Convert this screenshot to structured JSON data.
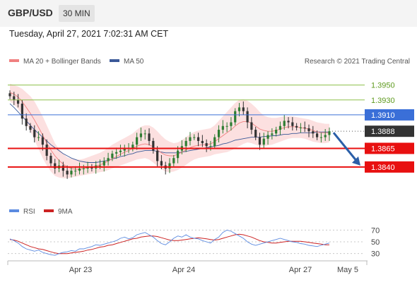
{
  "header": {
    "symbol": "GBP/USD",
    "timeframe": "30 MIN",
    "datetime": "Tuesday, April 27, 2021 7:02:31 AM CET"
  },
  "legend": {
    "ma20_bb": "MA 20 + Bollinger Bands",
    "ma50": "MA 50",
    "credit": "Research © 2021 Trading Central",
    "rsi": "RSI",
    "ma9": "9MA"
  },
  "colors": {
    "ma20": "#f08080",
    "ma50": "#3b5998",
    "bands": "#fbd5d5",
    "resistance": "#8dc04a",
    "pivot": "#3a6fd8",
    "support": "#e81010",
    "current": "#333333",
    "candle_up": "#2e7d32",
    "candle_down": "#333333",
    "arrow": "#2b5fa8",
    "rsi": "#5b8ae0",
    "rsi_ma": "#cc2222"
  },
  "chart_data": [
    {
      "type": "candlestick",
      "y_range": [
        1.382,
        1.3962
      ],
      "levels": [
        {
          "value": 1.395,
          "label": "1.3950",
          "kind": "resistance"
        },
        {
          "value": 1.393,
          "label": "1.3930",
          "kind": "resistance"
        },
        {
          "value": 1.391,
          "label": "1.3910",
          "kind": "pivot"
        },
        {
          "value": 1.3888,
          "label": "1.3888",
          "kind": "current"
        },
        {
          "value": 1.3865,
          "label": "1.3865",
          "kind": "support"
        },
        {
          "value": 1.384,
          "label": "1.3840",
          "kind": "support"
        }
      ],
      "x_ticks": [
        "Apr 23",
        "Apr 24",
        "Apr 27",
        "May 5"
      ],
      "close": [
        1.3935,
        1.393,
        1.3925,
        1.3905,
        1.3895,
        1.389,
        1.388,
        1.388,
        1.387,
        1.3855,
        1.3845,
        1.3838,
        1.3842,
        1.3835,
        1.383,
        1.3835,
        1.3835,
        1.3838,
        1.3838,
        1.384,
        1.3838,
        1.3842,
        1.3842,
        1.3848,
        1.3852,
        1.3858,
        1.386,
        1.3862,
        1.3865,
        1.3865,
        1.387,
        1.388,
        1.3885,
        1.3885,
        1.3875,
        1.3862,
        1.3848,
        1.3842,
        1.3838,
        1.3845,
        1.3852,
        1.3862,
        1.3868,
        1.3875,
        1.388,
        1.388,
        1.3875,
        1.3872,
        1.3868,
        1.3868,
        1.388,
        1.389,
        1.3895,
        1.3895,
        1.39,
        1.3915,
        1.392,
        1.3915,
        1.39,
        1.389,
        1.388,
        1.387,
        1.3878,
        1.3883,
        1.3885,
        1.389,
        1.3895,
        1.3902,
        1.39,
        1.3895,
        1.3893,
        1.3893,
        1.3892,
        1.3888,
        1.3885,
        1.388,
        1.388,
        1.3883,
        1.3888
      ],
      "ma20": [
        1.394,
        1.3938,
        1.3934,
        1.3928,
        1.392,
        1.3912,
        1.3903,
        1.3893,
        1.3883,
        1.3872,
        1.3863,
        1.3855,
        1.3849,
        1.3844,
        1.384,
        1.3838,
        1.3837,
        1.3837,
        1.3838,
        1.3839,
        1.384,
        1.3841,
        1.3843,
        1.3845,
        1.3848,
        1.3851,
        1.3854,
        1.3857,
        1.386,
        1.3862,
        1.3865,
        1.3868,
        1.387,
        1.3871,
        1.387,
        1.3867,
        1.3863,
        1.3859,
        1.3856,
        1.3855,
        1.3855,
        1.3857,
        1.386,
        1.3863,
        1.3866,
        1.3868,
        1.3869,
        1.387,
        1.387,
        1.3871,
        1.3874,
        1.3878,
        1.3882,
        1.3886,
        1.389,
        1.3895,
        1.3899,
        1.3901,
        1.3901,
        1.3899,
        1.3895,
        1.3891,
        1.3889,
        1.3888,
        1.3888,
        1.3889,
        1.3891,
        1.3893,
        1.3894,
        1.3894,
        1.3894,
        1.3893,
        1.3892,
        1.3891,
        1.3889,
        1.3887,
        1.3886,
        1.3886,
        1.3886
      ],
      "bb_upper": [
        1.3952,
        1.395,
        1.3948,
        1.3945,
        1.394,
        1.3935,
        1.3928,
        1.3918,
        1.3908,
        1.3896,
        1.3884,
        1.3872,
        1.3864,
        1.3858,
        1.3853,
        1.3851,
        1.385,
        1.385,
        1.3851,
        1.3853,
        1.3855,
        1.3857,
        1.3859,
        1.3862,
        1.3866,
        1.387,
        1.3873,
        1.3876,
        1.3879,
        1.3882,
        1.3885,
        1.389,
        1.3894,
        1.3896,
        1.3896,
        1.3893,
        1.3888,
        1.3882,
        1.3877,
        1.3874,
        1.3872,
        1.3873,
        1.3876,
        1.388,
        1.3884,
        1.3887,
        1.3889,
        1.389,
        1.3891,
        1.3892,
        1.3896,
        1.3902,
        1.3908,
        1.3914,
        1.392,
        1.3926,
        1.393,
        1.3931,
        1.3929,
        1.3925,
        1.392,
        1.3914,
        1.3909,
        1.3907,
        1.3906,
        1.3906,
        1.3907,
        1.3908,
        1.3908,
        1.3908,
        1.3907,
        1.3906,
        1.3905,
        1.3904,
        1.3902,
        1.39,
        1.3899,
        1.3898,
        1.3898
      ],
      "bb_lower": [
        1.3928,
        1.3924,
        1.3918,
        1.391,
        1.39,
        1.3888,
        1.3876,
        1.3864,
        1.3852,
        1.3842,
        1.3834,
        1.3828,
        1.3826,
        1.3825,
        1.3825,
        1.3826,
        1.3827,
        1.3828,
        1.3829,
        1.383,
        1.3831,
        1.3832,
        1.3833,
        1.3834,
        1.3836,
        1.3838,
        1.384,
        1.3842,
        1.3844,
        1.3846,
        1.3848,
        1.385,
        1.3851,
        1.3852,
        1.385,
        1.3846,
        1.3841,
        1.3837,
        1.3834,
        1.3833,
        1.3834,
        1.3836,
        1.3839,
        1.3843,
        1.3847,
        1.385,
        1.3852,
        1.3853,
        1.3854,
        1.3855,
        1.3857,
        1.3858,
        1.3859,
        1.386,
        1.3862,
        1.3865,
        1.3868,
        1.3871,
        1.3873,
        1.3872,
        1.387,
        1.3868,
        1.3868,
        1.3869,
        1.387,
        1.3872,
        1.3874,
        1.3876,
        1.3878,
        1.3879,
        1.3879,
        1.3879,
        1.3878,
        1.3876,
        1.3874,
        1.3873,
        1.3872,
        1.3872,
        1.3873
      ],
      "ma50": [
        1.3925,
        1.392,
        1.3914,
        1.3908,
        1.3902,
        1.3896,
        1.389,
        1.3885,
        1.388,
        1.3875,
        1.387,
        1.3866,
        1.3862,
        1.3858,
        1.3855,
        1.3852,
        1.385,
        1.3848,
        1.3847,
        1.3846,
        1.3846,
        1.3846,
        1.3847,
        1.3848,
        1.3849,
        1.3851,
        1.3852,
        1.3854,
        1.3855,
        1.3857,
        1.3858,
        1.386,
        1.3861,
        1.3862,
        1.3862,
        1.3862,
        1.3861,
        1.386,
        1.3859,
        1.3859,
        1.3859,
        1.3859,
        1.386,
        1.3861,
        1.3862,
        1.3863,
        1.3864,
        1.3865,
        1.3866,
        1.3867,
        1.3868,
        1.3869,
        1.3871,
        1.3872,
        1.3874,
        1.3876,
        1.3877,
        1.3878,
        1.3879,
        1.388,
        1.388,
        1.388,
        1.3881,
        1.3881,
        1.3882,
        1.3882,
        1.3883,
        1.3884,
        1.3884,
        1.3885,
        1.3885,
        1.3886,
        1.3886,
        1.3886,
        1.3886,
        1.3887,
        1.3887,
        1.3887,
        1.3887
      ],
      "forecast": {
        "from": 1.3888,
        "to": 1.384
      }
    },
    {
      "type": "line",
      "name": "RSI",
      "y_ticks": [
        "70",
        "50",
        "30"
      ],
      "y_range": [
        20,
        80
      ],
      "rsi": [
        55,
        52,
        48,
        42,
        38,
        36,
        34,
        36,
        32,
        30,
        28,
        27,
        30,
        32,
        33,
        35,
        34,
        38,
        38,
        40,
        42,
        45,
        44,
        46,
        48,
        50,
        52,
        56,
        58,
        55,
        57,
        62,
        64,
        66,
        62,
        58,
        52,
        47,
        45,
        50,
        56,
        60,
        58,
        62,
        58,
        56,
        55,
        52,
        50,
        48,
        54,
        58,
        66,
        70,
        68,
        64,
        60,
        56,
        50,
        46,
        44,
        46,
        48,
        50,
        52,
        54,
        56,
        54,
        52,
        50,
        49,
        47,
        46,
        44,
        43,
        42,
        44,
        46,
        48
      ],
      "ma9": [
        54,
        53,
        51,
        48,
        45,
        42,
        40,
        38,
        37,
        35,
        33,
        31,
        30,
        30,
        30,
        31,
        32,
        33,
        34,
        36,
        37,
        39,
        41,
        42,
        44,
        45,
        47,
        49,
        51,
        53,
        55,
        56,
        58,
        59,
        60,
        60,
        59,
        57,
        55,
        53,
        52,
        52,
        53,
        54,
        55,
        56,
        57,
        56,
        55,
        54,
        53,
        54,
        56,
        58,
        60,
        62,
        63,
        62,
        60,
        58,
        55,
        52,
        50,
        49,
        48,
        48,
        49,
        50,
        51,
        51,
        51,
        51,
        50,
        49,
        48,
        47,
        46,
        45,
        45
      ]
    }
  ]
}
